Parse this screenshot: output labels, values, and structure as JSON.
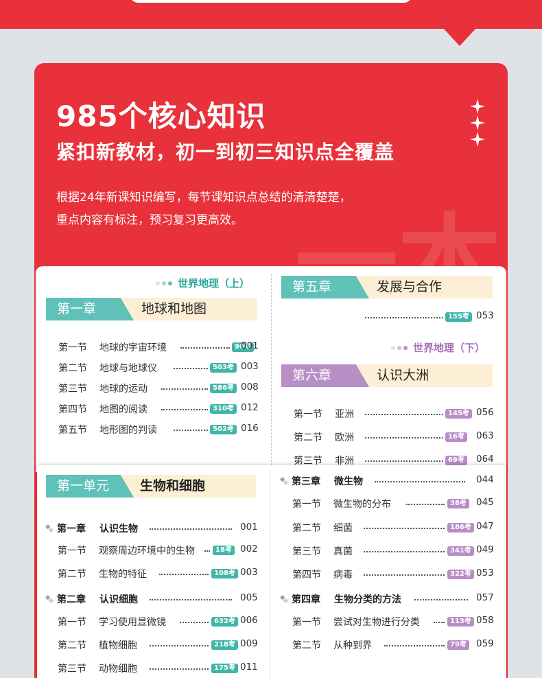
{
  "headline": {
    "title": "985个核心知识",
    "subtitle": "紧扣新教材，初一到初三知识点全覆盖",
    "desc_line1": "根据24年新课知识编写，每节课知识点总结的清清楚楚，",
    "desc_line2": "重点内容有标注，预习复习更高效。",
    "watermark": "一本"
  },
  "colors": {
    "red": "#e8313a",
    "teal": "#5fc1b8",
    "purple": "#b88ec6",
    "cream": "#fcefd5"
  },
  "geo_up": {
    "label": "世界地理（上）",
    "chapter1": {
      "tag": "第一章",
      "title": "地球和地图",
      "sections": [
        {
          "sec": "第一节",
          "name": "地球的宇宙环境",
          "badge": "90考",
          "page": "001"
        },
        {
          "sec": "第二节",
          "name": "地球与地球仪",
          "badge": "503考",
          "page": "003"
        },
        {
          "sec": "第三节",
          "name": "地球的运动",
          "badge": "586考",
          "page": "008"
        },
        {
          "sec": "第四节",
          "name": "地图的阅读",
          "badge": "310考",
          "page": "012"
        },
        {
          "sec": "第五节",
          "name": "地形图的判读",
          "badge": "502考",
          "page": "016"
        }
      ]
    },
    "chapter5": {
      "tag": "第五章",
      "title": "发展与合作",
      "badge": "155考",
      "page": "053"
    }
  },
  "geo_down": {
    "label": "世界地理（下）",
    "chapter6": {
      "tag": "第六章",
      "title": "认识大洲",
      "sections": [
        {
          "sec": "第一节",
          "name": "亚洲",
          "badge": "145考",
          "page": "056"
        },
        {
          "sec": "第二节",
          "name": "欧洲",
          "badge": "16考",
          "page": "063"
        },
        {
          "sec": "第三节",
          "name": "非洲",
          "badge": "69考",
          "page": "064"
        }
      ]
    }
  },
  "bio": {
    "unit_tag": "第一单元",
    "unit_title": "生物和细胞",
    "left": {
      "ch1": {
        "num": "第一章",
        "name": "认识生物",
        "page": "001"
      },
      "ch1_sections": [
        {
          "sec": "第一节",
          "name": "观察周边环境中的生物",
          "badge": "18考",
          "page": "002"
        },
        {
          "sec": "第二节",
          "name": "生物的特征",
          "badge": "108考",
          "page": "003"
        }
      ],
      "ch2": {
        "num": "第二章",
        "name": "认识细胞",
        "page": "005"
      },
      "ch2_sections": [
        {
          "sec": "第一节",
          "name": "学习使用显微镜",
          "badge": "632考",
          "page": "006"
        },
        {
          "sec": "第二节",
          "name": "植物细胞",
          "badge": "218考",
          "page": "009"
        },
        {
          "sec": "第三节",
          "name": "动物细胞",
          "badge": "175考",
          "page": "011"
        }
      ]
    },
    "right": {
      "ch3": {
        "num": "第三章",
        "name": "微生物",
        "page": "044"
      },
      "ch3_sections": [
        {
          "sec": "第一节",
          "name": "微生物的分布",
          "badge": "38考",
          "page": "045"
        },
        {
          "sec": "第二节",
          "name": "细菌",
          "badge": "186考",
          "page": "047"
        },
        {
          "sec": "第三节",
          "name": "真菌",
          "badge": "341考",
          "page": "049"
        },
        {
          "sec": "第四节",
          "name": "病毒",
          "badge": "322考",
          "page": "053"
        }
      ],
      "ch4": {
        "num": "第四章",
        "name": "生物分类的方法",
        "page": "057"
      },
      "ch4_sections": [
        {
          "sec": "第一节",
          "name": "尝试对生物进行分类",
          "badge": "113考",
          "page": "058"
        },
        {
          "sec": "第二节",
          "name": "从种到界",
          "badge": "79考",
          "page": "059"
        }
      ]
    }
  }
}
